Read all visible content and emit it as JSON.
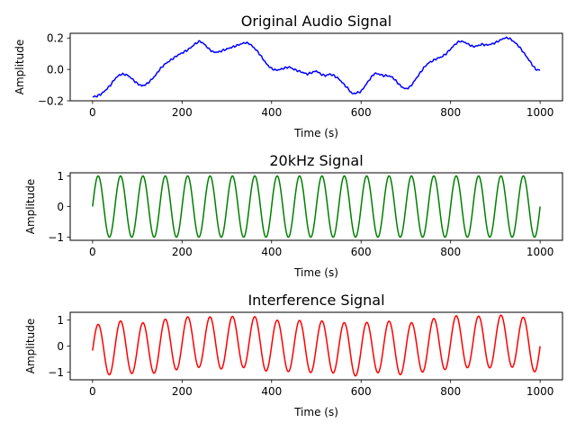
{
  "chart_data": [
    {
      "type": "line",
      "title": "Original Audio Signal",
      "xlabel": "Time (s)",
      "ylabel": "Amplitude",
      "xlim": [
        -50,
        1050
      ],
      "ylim": [
        -0.2,
        0.23
      ],
      "xticks": [
        0,
        200,
        400,
        600,
        800,
        1000
      ],
      "yticks": [
        -0.2,
        0.0,
        0.2
      ],
      "ytick_labels": [
        "−0.2",
        "0.0",
        "0.2"
      ],
      "grid": false,
      "color": "#0000ff",
      "series": [
        {
          "x": [
            0,
            10,
            20,
            30,
            40,
            50,
            60,
            70,
            80,
            90,
            100,
            110,
            120,
            130,
            140,
            150,
            160,
            170,
            180,
            190,
            200,
            210,
            220,
            230,
            240,
            250,
            260,
            270,
            280,
            290,
            300,
            310,
            320,
            330,
            340,
            350,
            360,
            370,
            380,
            390,
            400,
            410,
            420,
            430,
            440,
            450,
            460,
            470,
            480,
            490,
            500,
            510,
            520,
            530,
            540,
            550,
            560,
            570,
            580,
            590,
            600,
            610,
            620,
            630,
            640,
            650,
            660,
            670,
            680,
            690,
            700,
            710,
            720,
            730,
            740,
            750,
            760,
            770,
            780,
            790,
            800,
            810,
            820,
            830,
            840,
            850,
            860,
            870,
            880,
            890,
            900,
            910,
            920,
            930,
            940,
            950,
            960,
            970,
            980,
            990,
            1000
          ],
          "y": [
            -0.175,
            -0.17,
            -0.155,
            -0.13,
            -0.1,
            -0.06,
            -0.035,
            -0.03,
            -0.04,
            -0.065,
            -0.09,
            -0.105,
            -0.095,
            -0.07,
            -0.04,
            0.0,
            0.03,
            0.05,
            0.07,
            0.09,
            0.105,
            0.12,
            0.14,
            0.165,
            0.18,
            0.16,
            0.13,
            0.11,
            0.11,
            0.12,
            0.13,
            0.14,
            0.15,
            0.16,
            0.17,
            0.165,
            0.14,
            0.11,
            0.07,
            0.03,
            0.005,
            -0.005,
            0.0,
            0.01,
            0.015,
            0.0,
            -0.01,
            -0.02,
            -0.03,
            -0.02,
            -0.01,
            -0.03,
            -0.04,
            -0.03,
            -0.04,
            -0.06,
            -0.09,
            -0.12,
            -0.155,
            -0.15,
            -0.14,
            -0.1,
            -0.06,
            -0.025,
            -0.03,
            -0.04,
            -0.04,
            -0.05,
            -0.08,
            -0.11,
            -0.125,
            -0.11,
            -0.07,
            -0.03,
            0.01,
            0.04,
            0.055,
            0.07,
            0.08,
            0.1,
            0.13,
            0.16,
            0.18,
            0.175,
            0.16,
            0.145,
            0.15,
            0.16,
            0.155,
            0.16,
            0.17,
            0.185,
            0.2,
            0.2,
            0.18,
            0.155,
            0.12,
            0.08,
            0.04,
            0.0,
            -0.005
          ]
        }
      ]
    },
    {
      "type": "line",
      "title": "20kHz Signal",
      "xlabel": "Time (s)",
      "ylabel": "Amplitude",
      "xlim": [
        -50,
        1050
      ],
      "ylim": [
        -1.1,
        1.1
      ],
      "xticks": [
        0,
        200,
        400,
        600,
        800,
        1000
      ],
      "yticks": [
        -1,
        0,
        1
      ],
      "ytick_labels": [
        "−1",
        "0",
        "1"
      ],
      "grid": false,
      "color": "#008000",
      "series": [
        {
          "function": "sin(2*pi*20*t/1000)",
          "x_range": [
            0,
            1000
          ],
          "cycles": 20,
          "amplitude": 1
        }
      ]
    },
    {
      "type": "line",
      "title": "Interference Signal",
      "xlabel": "Time (s)",
      "ylabel": "Amplitude",
      "xlim": [
        -50,
        1050
      ],
      "ylim": [
        -1.3,
        1.3
      ],
      "xticks": [
        0,
        200,
        400,
        600,
        800,
        1000
      ],
      "yticks": [
        -1,
        0,
        1
      ],
      "ytick_labels": [
        "−1",
        "0",
        "1"
      ],
      "grid": false,
      "color": "#ff0000",
      "series": [
        {
          "composition": "20kHz Signal + Original Audio Signal",
          "x_range": [
            0,
            1000
          ]
        }
      ]
    }
  ]
}
